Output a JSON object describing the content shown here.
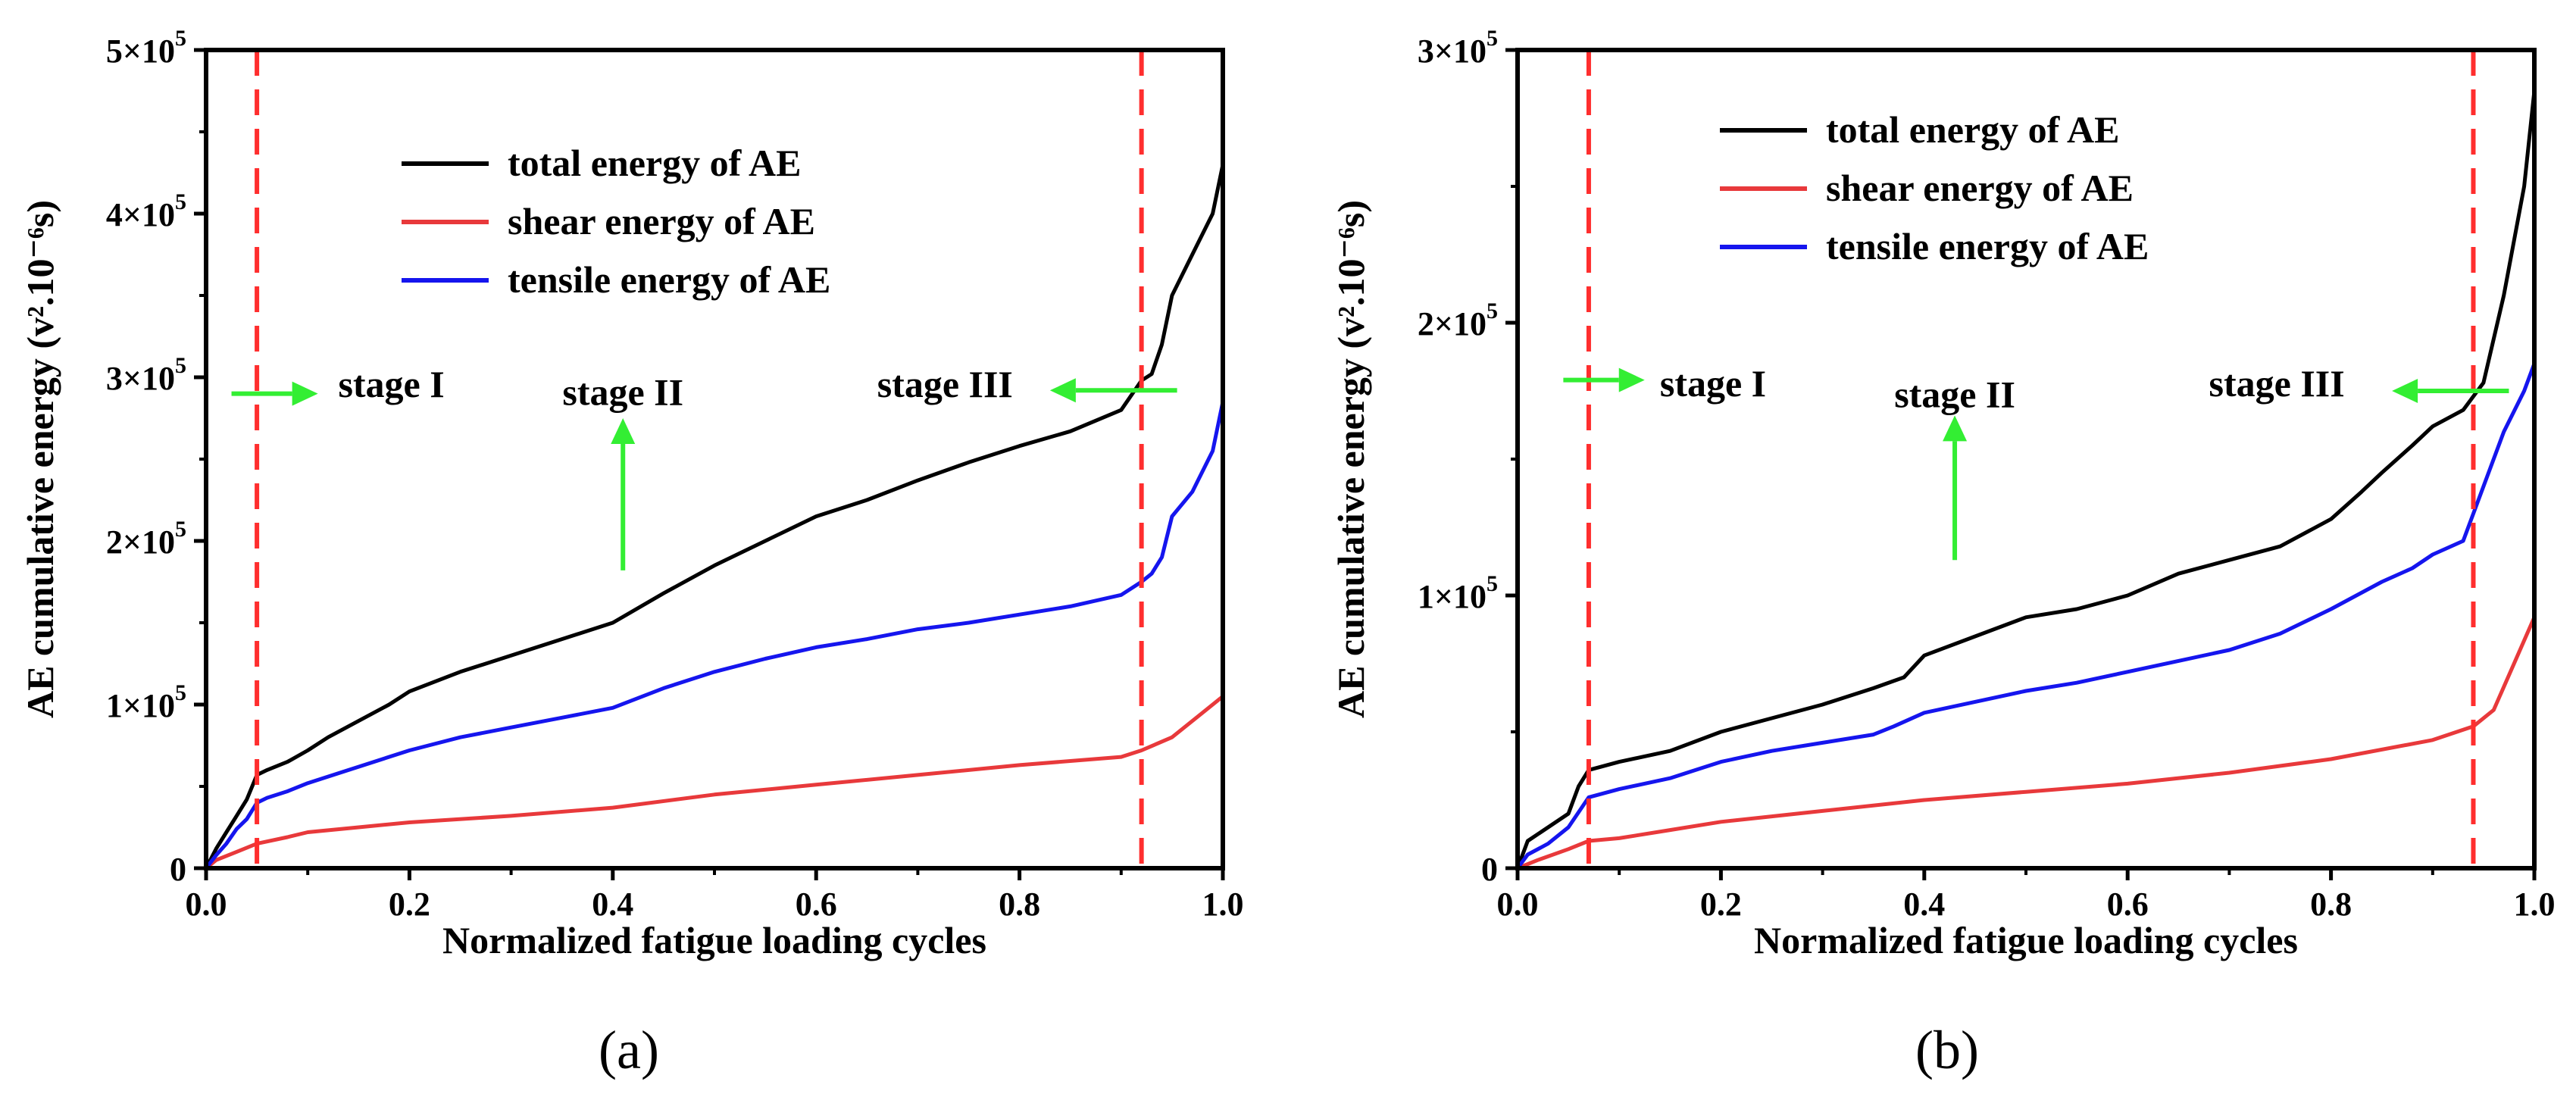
{
  "colors": {
    "total": "#000000",
    "shear": "#e8393b",
    "tensile": "#1515ee",
    "vline": "#ff2e2e",
    "arrow": "#33ee33"
  },
  "legend": [
    "total energy of AE",
    "shear energy of AE",
    "tensile energy of AE"
  ],
  "chart_data": [
    {
      "type": "line",
      "panel_label": "(a)",
      "xlabel": "Normalized fatigue loading cycles",
      "ylabel": "AE cumulative energy (v².10⁻⁶s)",
      "xlim": [
        0,
        1.0
      ],
      "ylim": [
        0,
        500000
      ],
      "x_ticks": [
        "0.0",
        "0.2",
        "0.4",
        "0.6",
        "0.8",
        "1.0"
      ],
      "y_ticks": [
        {
          "value": 0,
          "base": "0",
          "exp": ""
        },
        {
          "value": 100000,
          "base": "1×10",
          "exp": "5"
        },
        {
          "value": 200000,
          "base": "2×10",
          "exp": "5"
        },
        {
          "value": 300000,
          "base": "3×10",
          "exp": "5"
        },
        {
          "value": 400000,
          "base": "4×10",
          "exp": "5"
        },
        {
          "value": 500000,
          "base": "5×10",
          "exp": "5"
        }
      ],
      "stage_boundaries": [
        0.05,
        0.92
      ],
      "stages": [
        {
          "label": "stage I",
          "x": 0.13,
          "y": 288000,
          "arrow": "right",
          "arrow_from": [
            0.025,
            290000
          ],
          "arrow_to": [
            0.11,
            290000
          ]
        },
        {
          "label": "stage II",
          "x": 0.41,
          "y": 283000,
          "arrow": "up",
          "arrow_from": [
            0.41,
            182000
          ],
          "arrow_to": [
            0.41,
            275000
          ]
        },
        {
          "label": "stage III",
          "x": 0.66,
          "y": 288000,
          "arrow": "left",
          "arrow_from": [
            0.955,
            292000
          ],
          "arrow_to": [
            0.83,
            292000
          ]
        }
      ],
      "series": [
        {
          "name": "total energy of AE",
          "key": "total",
          "x": [
            0,
            0.01,
            0.02,
            0.03,
            0.04,
            0.05,
            0.06,
            0.08,
            0.1,
            0.12,
            0.15,
            0.18,
            0.2,
            0.25,
            0.3,
            0.35,
            0.4,
            0.45,
            0.5,
            0.55,
            0.6,
            0.65,
            0.7,
            0.75,
            0.8,
            0.85,
            0.9,
            0.92,
            0.93,
            0.94,
            0.95,
            0.97,
            0.99,
            1.0
          ],
          "y": [
            0,
            12000,
            22000,
            32000,
            42000,
            57000,
            60000,
            65000,
            72000,
            80000,
            90000,
            100000,
            108000,
            120000,
            130000,
            140000,
            150000,
            168000,
            185000,
            200000,
            215000,
            225000,
            237000,
            248000,
            258000,
            267000,
            280000,
            298000,
            302000,
            320000,
            350000,
            375000,
            400000,
            430000
          ]
        },
        {
          "name": "shear energy of AE",
          "key": "shear",
          "x": [
            0,
            0.01,
            0.03,
            0.05,
            0.08,
            0.1,
            0.15,
            0.2,
            0.3,
            0.4,
            0.5,
            0.6,
            0.7,
            0.8,
            0.9,
            0.92,
            0.95,
            0.98,
            1.0
          ],
          "y": [
            0,
            5000,
            10000,
            15000,
            19000,
            22000,
            25000,
            28000,
            32000,
            37000,
            45000,
            51000,
            57000,
            63000,
            68000,
            72000,
            80000,
            95000,
            105000
          ]
        },
        {
          "name": "tensile energy of AE",
          "key": "tensile",
          "x": [
            0,
            0.01,
            0.02,
            0.03,
            0.04,
            0.05,
            0.06,
            0.08,
            0.1,
            0.15,
            0.2,
            0.25,
            0.3,
            0.35,
            0.4,
            0.45,
            0.5,
            0.55,
            0.6,
            0.65,
            0.7,
            0.75,
            0.8,
            0.85,
            0.9,
            0.92,
            0.93,
            0.94,
            0.95,
            0.97,
            0.99,
            1.0
          ],
          "y": [
            0,
            8000,
            15000,
            24000,
            30000,
            40000,
            43000,
            47000,
            52000,
            62000,
            72000,
            80000,
            86000,
            92000,
            98000,
            110000,
            120000,
            128000,
            135000,
            140000,
            146000,
            150000,
            155000,
            160000,
            167000,
            175000,
            180000,
            190000,
            215000,
            230000,
            255000,
            285000
          ]
        }
      ]
    },
    {
      "type": "line",
      "panel_label": "(b)",
      "xlabel": "Normalized fatigue loading cycles",
      "ylabel": "AE cumulative energy (v².10⁻⁶s)",
      "xlim": [
        0,
        1.0
      ],
      "ylim": [
        0,
        300000
      ],
      "x_ticks": [
        "0.0",
        "0.2",
        "0.4",
        "0.6",
        "0.8",
        "1.0"
      ],
      "y_ticks": [
        {
          "value": 0,
          "base": "0",
          "exp": ""
        },
        {
          "value": 100000,
          "base": "1×10",
          "exp": "5"
        },
        {
          "value": 200000,
          "base": "2×10",
          "exp": "5"
        },
        {
          "value": 300000,
          "base": "3×10",
          "exp": "5"
        }
      ],
      "stage_boundaries": [
        0.07,
        0.94
      ],
      "stages": [
        {
          "label": "stage I",
          "x": 0.14,
          "y": 173000,
          "arrow": "right",
          "arrow_from": [
            0.045,
            179000
          ],
          "arrow_to": [
            0.125,
            179000
          ]
        },
        {
          "label": "stage II",
          "x": 0.43,
          "y": 169000,
          "arrow": "up",
          "arrow_from": [
            0.43,
            113000
          ],
          "arrow_to": [
            0.43,
            166000
          ]
        },
        {
          "label": "stage III",
          "x": 0.68,
          "y": 173000,
          "arrow": "left",
          "arrow_from": [
            0.975,
            175000
          ],
          "arrow_to": [
            0.86,
            175000
          ]
        }
      ],
      "series": [
        {
          "name": "total energy of AE",
          "key": "total",
          "x": [
            0,
            0.01,
            0.03,
            0.05,
            0.06,
            0.07,
            0.08,
            0.1,
            0.15,
            0.2,
            0.25,
            0.3,
            0.35,
            0.38,
            0.4,
            0.45,
            0.5,
            0.55,
            0.6,
            0.65,
            0.7,
            0.75,
            0.8,
            0.83,
            0.85,
            0.88,
            0.9,
            0.93,
            0.95,
            0.97,
            0.99,
            1.0
          ],
          "y": [
            0,
            10000,
            15000,
            20000,
            30000,
            36000,
            37000,
            39000,
            43000,
            50000,
            55000,
            60000,
            66000,
            70000,
            78000,
            85000,
            92000,
            95000,
            100000,
            108000,
            113000,
            118000,
            128000,
            138000,
            145000,
            155000,
            162000,
            168000,
            178000,
            210000,
            250000,
            285000
          ]
        },
        {
          "name": "shear energy of AE",
          "key": "shear",
          "x": [
            0,
            0.02,
            0.05,
            0.07,
            0.1,
            0.15,
            0.2,
            0.25,
            0.3,
            0.4,
            0.5,
            0.6,
            0.7,
            0.8,
            0.9,
            0.94,
            0.96,
            0.98,
            1.0
          ],
          "y": [
            0,
            3000,
            7000,
            10000,
            11000,
            14000,
            17000,
            19000,
            21000,
            25000,
            28000,
            31000,
            35000,
            40000,
            47000,
            52000,
            58000,
            75000,
            92000
          ]
        },
        {
          "name": "tensile energy of AE",
          "key": "tensile",
          "x": [
            0,
            0.01,
            0.03,
            0.05,
            0.07,
            0.1,
            0.15,
            0.2,
            0.25,
            0.3,
            0.35,
            0.37,
            0.4,
            0.45,
            0.5,
            0.55,
            0.6,
            0.65,
            0.7,
            0.75,
            0.8,
            0.85,
            0.88,
            0.9,
            0.93,
            0.95,
            0.97,
            0.99,
            1.0
          ],
          "y": [
            0,
            5000,
            9000,
            15000,
            26000,
            29000,
            33000,
            39000,
            43000,
            46000,
            49000,
            52000,
            57000,
            61000,
            65000,
            68000,
            72000,
            76000,
            80000,
            86000,
            95000,
            105000,
            110000,
            115000,
            120000,
            140000,
            160000,
            175000,
            185000
          ]
        }
      ]
    }
  ]
}
